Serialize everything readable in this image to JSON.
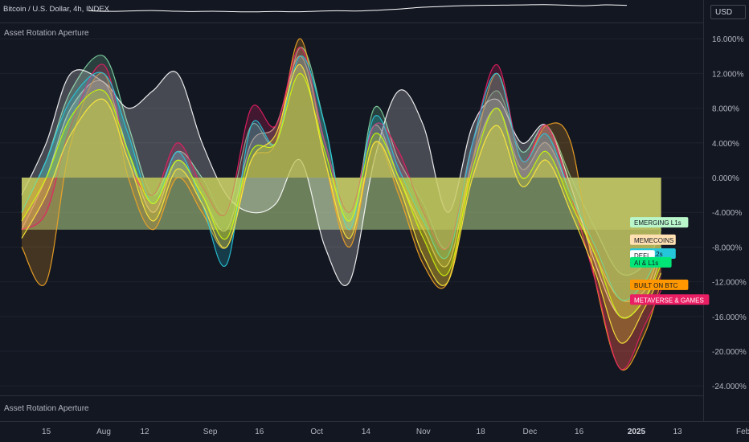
{
  "header": {
    "symbol_title": "Bitcoin / U.S. Dollar, 4h, INDEX",
    "currency_button": "USD"
  },
  "indicator": {
    "name": "Asset Rotation Aperture",
    "name_bottom": "Asset Rotation Aperture"
  },
  "colors": {
    "background": "#131722",
    "grid": "#1e222d",
    "text": "#b2b5be",
    "zero_band": "#b5d68b"
  },
  "chart_data": {
    "type": "area",
    "title": "",
    "y_axis": {
      "unit": "%",
      "ylim": [
        -25,
        18
      ],
      "ticks": [
        16,
        12,
        8,
        4,
        0,
        -4,
        -8,
        -12,
        -16,
        -20,
        -24
      ],
      "tick_labels": [
        "16.000%",
        "12.000%",
        "8.000%",
        "4.000%",
        "0.000%",
        "-4.000%",
        "-8.000%",
        "-12.000%",
        "-16.000%",
        "-20.000%",
        "-24.000%"
      ]
    },
    "x_axis": {
      "labels": [
        {
          "label": "15",
          "t": 0.3
        },
        {
          "label": "Aug",
          "t": 1.0
        },
        {
          "label": "12",
          "t": 1.5
        },
        {
          "label": "Sep",
          "t": 2.3
        },
        {
          "label": "16",
          "t": 2.9
        },
        {
          "label": "Oct",
          "t": 3.6
        },
        {
          "label": "14",
          "t": 4.2
        },
        {
          "label": "Nov",
          "t": 4.9
        },
        {
          "label": "18",
          "t": 5.6
        },
        {
          "label": "Dec",
          "t": 6.2
        },
        {
          "label": "16",
          "t": 6.8
        },
        {
          "label": "2025",
          "t": 7.5
        },
        {
          "label": "13",
          "t": 8.0
        },
        {
          "label": "Feb",
          "t": 8.8
        }
      ]
    },
    "x": [
      0.0,
      0.3,
      0.6,
      1.0,
      1.3,
      1.6,
      1.9,
      2.2,
      2.5,
      2.8,
      3.1,
      3.4,
      3.7,
      4.0,
      4.3,
      4.6,
      4.9,
      5.2,
      5.5,
      5.8,
      6.1,
      6.4,
      6.7,
      7.0,
      7.3,
      7.6,
      7.8
    ],
    "series": [
      {
        "name": "EMERGING L1s",
        "color": "#7fd7a4",
        "values": [
          -4,
          2,
          10,
          14,
          6,
          -2,
          3,
          0,
          -4,
          6,
          4,
          15,
          6,
          -6,
          8,
          2,
          -3,
          -8,
          4,
          10,
          3,
          6,
          0,
          -6,
          -11,
          -10,
          -6
        ]
      },
      {
        "name": "MEMECOINS",
        "color": "#d8c79a",
        "values": [
          -6,
          0,
          8,
          11,
          3,
          -4,
          2,
          -2,
          -6,
          4,
          6,
          14,
          4,
          -4,
          6,
          0,
          -6,
          -10,
          2,
          8,
          1,
          4,
          -2,
          -9,
          -14,
          -13,
          -8
        ]
      },
      {
        "name": "DEFI",
        "color": "#ffffff",
        "values": [
          -2,
          4,
          12,
          11,
          8,
          10,
          12,
          4,
          -2,
          -4,
          -3,
          2,
          -8,
          -12,
          2,
          10,
          6,
          -4,
          6,
          9,
          4,
          6,
          -1,
          -10,
          -16,
          -14,
          -9
        ]
      },
      {
        "name": "BUILT ON BTC",
        "color": "#f5a623",
        "values": [
          -8,
          -12,
          4,
          12,
          0,
          -6,
          0,
          -4,
          -8,
          2,
          4,
          16,
          2,
          -8,
          4,
          -2,
          -10,
          -12,
          2,
          12,
          2,
          6,
          4,
          -12,
          -22,
          -18,
          -12
        ]
      },
      {
        "name": "METAVERSE & GAMES",
        "color": "#e91e63",
        "values": [
          -6,
          -4,
          6,
          13,
          2,
          -2,
          4,
          -1,
          -4,
          8,
          6,
          15,
          4,
          -4,
          6,
          3,
          -4,
          -8,
          4,
          13,
          2,
          6,
          -2,
          -12,
          -22,
          -17,
          -13
        ]
      },
      {
        "name": "L1s & L2s",
        "color": "#26c6da",
        "values": [
          -4,
          2,
          9,
          12,
          5,
          -3,
          3,
          -3,
          -10,
          6,
          4,
          14,
          6,
          -6,
          7,
          1,
          -5,
          -9,
          4,
          12,
          2,
          5,
          -2,
          -8,
          -14,
          -12,
          -8
        ]
      },
      {
        "name": "AI & L1s",
        "color": "#c6ff00",
        "values": [
          -5,
          0,
          7,
          10,
          3,
          -3,
          2,
          -2,
          -7,
          3,
          4,
          12,
          3,
          -5,
          5,
          0,
          -7,
          -11,
          1,
          8,
          0,
          3,
          -3,
          -9,
          -16,
          -14,
          -10
        ]
      },
      {
        "name": "",
        "color": "#ffeb3b",
        "values": [
          -7,
          -2,
          5,
          9,
          2,
          -5,
          1,
          -3,
          -8,
          2,
          5,
          13,
          2,
          -7,
          4,
          -1,
          -9,
          -12,
          0,
          6,
          -1,
          2,
          -4,
          -11,
          -19,
          -15,
          -11
        ]
      }
    ],
    "zero_band": {
      "from_t": 0.0,
      "to_t": 7.8,
      "y_from": 0,
      "y_to": -6
    },
    "labels": [
      {
        "text": "EMERGING L1s",
        "value": -5.2,
        "bg": "#b9f6ca",
        "fg": "#131722"
      },
      {
        "text": "MEMECOINS",
        "value": -7.2,
        "bg": "#ffe0b2",
        "fg": "#131722"
      },
      {
        "text": "L1s & L2s",
        "value": -8.8,
        "bg": "#26c6da",
        "fg": "#131722"
      },
      {
        "text": "DEFI",
        "value": -9.0,
        "bg": "#ffffff",
        "fg": "#131722"
      },
      {
        "text": "AI & L1s",
        "value": -9.8,
        "bg": "#00e676",
        "fg": "#131722"
      },
      {
        "text": "BUILT ON BTC",
        "value": -12.4,
        "bg": "#ff9800",
        "fg": "#131722"
      },
      {
        "text": "METAVERSE & GAMES",
        "value": -14.1,
        "bg": "#e91e63",
        "fg": "#ffffff"
      }
    ]
  },
  "mini_price": {
    "color": "#ffffff",
    "values": [
      0.4,
      0.35,
      0.38,
      0.42,
      0.37,
      0.33,
      0.36,
      0.32,
      0.3,
      0.34,
      0.31,
      0.36,
      0.4,
      0.38,
      0.45,
      0.55,
      0.7,
      0.78,
      0.85,
      0.88,
      0.9,
      0.92,
      0.95,
      0.9,
      0.85,
      0.93,
      0.88
    ]
  }
}
